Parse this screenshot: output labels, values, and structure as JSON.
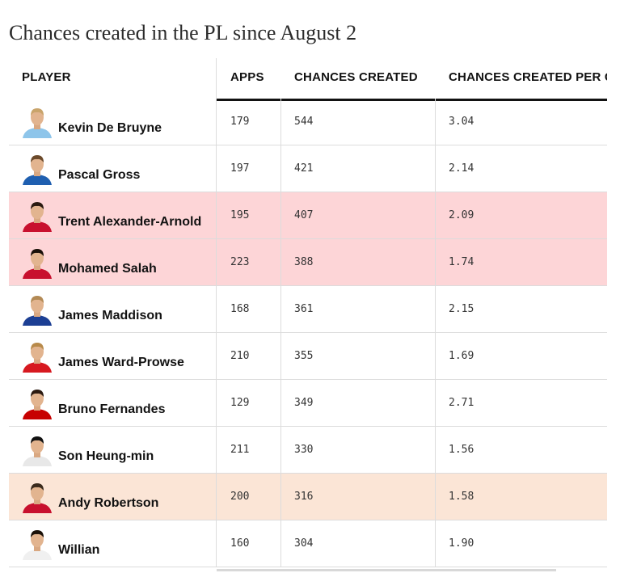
{
  "title": "Chances created in the PL since August 2",
  "columns": {
    "player": "PLAYER",
    "apps": "APPS",
    "chances": "CHANCES CREATED",
    "per_game": "CHANCES CREATED PER GAME"
  },
  "colors": {
    "highlight_red": "#fdd5d7",
    "highlight_peach": "#fbe5d6"
  },
  "rows": [
    {
      "name": "Kevin De Bruyne",
      "apps": "179",
      "chances": "544",
      "per_game": "3.04",
      "highlight": "none",
      "kit": "#8ec5ea",
      "hair": "#c9a46b"
    },
    {
      "name": "Pascal Gross",
      "apps": "197",
      "chances": "421",
      "per_game": "2.14",
      "highlight": "none",
      "kit": "#1f5fb0",
      "hair": "#6b4a2b"
    },
    {
      "name": "Trent Alexander-Arnold",
      "apps": "195",
      "chances": "407",
      "per_game": "2.09",
      "highlight": "red",
      "kit": "#c8102e",
      "hair": "#2a1a10"
    },
    {
      "name": "Mohamed Salah",
      "apps": "223",
      "chances": "388",
      "per_game": "1.74",
      "highlight": "red",
      "kit": "#c8102e",
      "hair": "#1a1008"
    },
    {
      "name": "James Maddison",
      "apps": "168",
      "chances": "361",
      "per_game": "2.15",
      "highlight": "none",
      "kit": "#1c3f94",
      "hair": "#b38a55"
    },
    {
      "name": "James Ward-Prowse",
      "apps": "210",
      "chances": "355",
      "per_game": "1.69",
      "highlight": "none",
      "kit": "#d71920",
      "hair": "#b88a4a"
    },
    {
      "name": "Bruno Fernandes",
      "apps": "129",
      "chances": "349",
      "per_game": "2.71",
      "highlight": "none",
      "kit": "#c70101",
      "hair": "#2b1a10"
    },
    {
      "name": "Son Heung-min",
      "apps": "211",
      "chances": "330",
      "per_game": "1.56",
      "highlight": "none",
      "kit": "#e8e8e8",
      "hair": "#111111"
    },
    {
      "name": "Andy Robertson",
      "apps": "200",
      "chances": "316",
      "per_game": "1.58",
      "highlight": "peach",
      "kit": "#c8102e",
      "hair": "#3a2a1c"
    },
    {
      "name": "Willian",
      "apps": "160",
      "chances": "304",
      "per_game": "1.90",
      "highlight": "none",
      "kit": "#f0f0f0",
      "hair": "#1a1008"
    }
  ]
}
